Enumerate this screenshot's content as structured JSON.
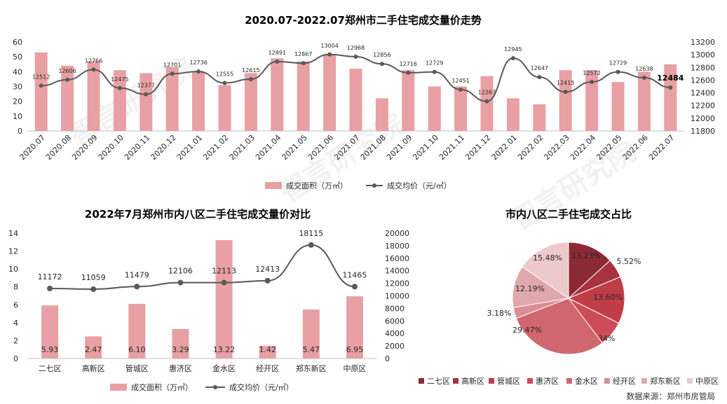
{
  "chart_data": [
    {
      "id": "trend",
      "type": "bar+line",
      "title": "2020.07-2022.07郑州市二手住宅成交量价走势",
      "categories": [
        "2020.07",
        "2020.08",
        "2020.09",
        "2020.10",
        "2020.11",
        "2020.12",
        "2021.01",
        "2021.02",
        "2021.03",
        "2021.04",
        "2021.05",
        "2021.06",
        "2021.07",
        "2021.08",
        "2021.09",
        "2021.10",
        "2021.11",
        "2021.12",
        "2022.01",
        "2022.02",
        "2022.03",
        "2022.04",
        "2022.05",
        "2022.06",
        "2022.07"
      ],
      "series": [
        {
          "name": "成交面积（万㎡）",
          "type": "bar",
          "axis": "left",
          "values": [
            53,
            44,
            47,
            41,
            39,
            43,
            40,
            31,
            39,
            49,
            47,
            52,
            42,
            22,
            41,
            30,
            30,
            37,
            22,
            18,
            41,
            41,
            33,
            40,
            45
          ]
        },
        {
          "name": "成交均价（元/㎡）",
          "type": "line",
          "axis": "right",
          "values": [
            12512,
            12606,
            12766,
            12475,
            12377,
            12701,
            12736,
            12555,
            12615,
            12891,
            12867,
            13004,
            12968,
            12856,
            12716,
            12729,
            12451,
            12267,
            12945,
            12647,
            12415,
            12572,
            12729,
            12638,
            12484
          ]
        }
      ],
      "ylim_left": [
        0,
        60
      ],
      "yticks_left": [
        0,
        10,
        20,
        30,
        40,
        50,
        60
      ],
      "ylim_right": [
        11800,
        13200
      ],
      "yticks_right": [
        11800,
        12000,
        12200,
        12400,
        12600,
        12800,
        13000,
        13200
      ],
      "legend": [
        "成交面积（万㎡）",
        "成交均价（元/㎡）"
      ]
    },
    {
      "id": "districts",
      "type": "bar+line",
      "title": "2022年7月郑州市内八区二手住宅成交量价对比",
      "categories": [
        "二七区",
        "高新区",
        "管城区",
        "惠济区",
        "金水区",
        "经开区",
        "郑东新区",
        "中原区"
      ],
      "series": [
        {
          "name": "成交面积（万㎡）",
          "type": "bar",
          "axis": "left",
          "values": [
            5.93,
            2.47,
            6.1,
            3.29,
            13.22,
            1.42,
            5.47,
            6.95
          ],
          "labels": [
            "5.93",
            "2.47",
            "6.10",
            "3.29",
            "13.22",
            "1.42",
            "5.47",
            "6.95"
          ]
        },
        {
          "name": "成交均价（元/㎡）",
          "type": "line",
          "axis": "right",
          "values": [
            11172,
            11059,
            11479,
            12106,
            12113,
            12413,
            18115,
            11465
          ]
        }
      ],
      "ylim_left": [
        0,
        14
      ],
      "yticks_left": [
        0,
        2,
        4,
        6,
        8,
        10,
        12,
        14
      ],
      "ylim_right": [
        0,
        20000
      ],
      "yticks_right": [
        0,
        2000,
        4000,
        6000,
        8000,
        10000,
        12000,
        14000,
        16000,
        18000,
        20000
      ],
      "legend": [
        "成交面积（万㎡）",
        "成交均价（元/㎡）"
      ]
    },
    {
      "id": "share",
      "type": "pie",
      "title": "市内八区二手住宅成交占比",
      "categories": [
        "二七区",
        "高新区",
        "管城区",
        "惠济区",
        "金水区",
        "经开区",
        "郑东新区",
        "中原区"
      ],
      "values": [
        13.23,
        5.52,
        13.6,
        7.34,
        29.47,
        3.18,
        12.19,
        15.48
      ],
      "labels": [
        "13.23%",
        "5.52%",
        "13.60%",
        "7.34%",
        "29.47%",
        "3.18%",
        "12.19%",
        "15.48%"
      ],
      "colors": [
        "#8b2a35",
        "#a8323f",
        "#bf3c49",
        "#cc4c58",
        "#d0666f",
        "#d98e93",
        "#e0a8ac",
        "#ecc9cb"
      ]
    }
  ],
  "colors": {
    "bar": "#e8a0a4",
    "line": "#595959",
    "watermark": "#d9d9d9"
  },
  "watermark": "智言研究院",
  "source": "数据来源：郑州市房管局"
}
